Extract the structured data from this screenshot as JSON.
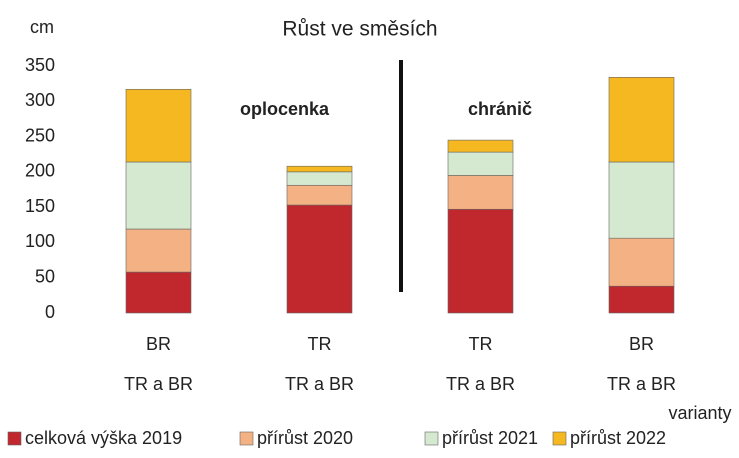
{
  "chart_data": {
    "type": "stacked_bar",
    "title": "Růst ve směsích",
    "y_label": "cm",
    "x_label": "varianty",
    "categories": [
      "BR",
      "TR",
      "TR",
      "BR"
    ],
    "subcategories": [
      "TR a BR",
      "TR a BR",
      "TR a BR",
      "TR a BR"
    ],
    "annotations": [
      "oplocenka",
      "chránič"
    ],
    "series": [
      {
        "name": "celková výška 2019",
        "color": "#c0282d",
        "values": [
          58,
          153,
          147,
          38
        ]
      },
      {
        "name": "přírůst 2020",
        "color": "#f4b183",
        "values": [
          61,
          28,
          48,
          68
        ]
      },
      {
        "name": "přírůst 2021",
        "color": "#d5e8d0",
        "values": [
          95,
          19,
          33,
          108
        ]
      },
      {
        "name": "přírůst 2022",
        "color": "#f5b820",
        "values": [
          103,
          8,
          17,
          120
        ]
      }
    ],
    "ylim": [
      0,
      350
    ],
    "yticks": [
      0,
      50,
      100,
      150,
      200,
      250,
      300,
      350
    ],
    "grid": false
  }
}
